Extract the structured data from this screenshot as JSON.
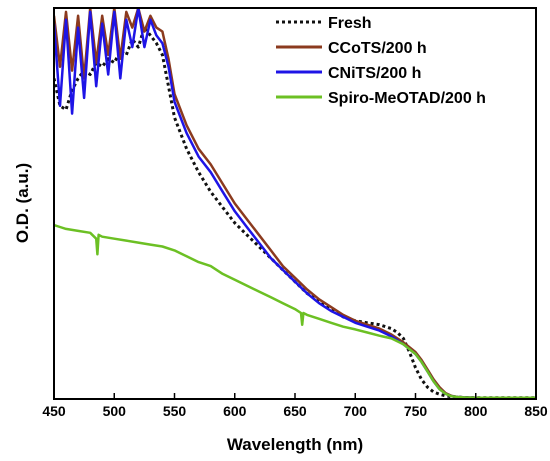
{
  "chart_data": {
    "type": "line",
    "xlabel": "Wavelength (nm)",
    "ylabel": "O.D. (a.u.)",
    "xlim": [
      450,
      850
    ],
    "ylim": [
      0,
      1
    ],
    "x_ticks": [
      450,
      500,
      550,
      600,
      650,
      700,
      750,
      800,
      850
    ],
    "x_tick_labels": [
      "450",
      "500",
      "550",
      "600",
      "650",
      "700",
      "750",
      "800",
      "850"
    ],
    "y_ticks_shown": false,
    "grid": false,
    "legend_position": "top-right",
    "legend": [
      "Fresh",
      "CCoTS/200 h",
      "CNiTS/200 h",
      "Spiro-MeOTAD/200 h"
    ],
    "series": [
      {
        "name": "Fresh",
        "color": "#111111",
        "dash": "dotted",
        "x": [
          450,
          455,
          460,
          465,
          470,
          475,
          480,
          485,
          490,
          495,
          500,
          505,
          510,
          515,
          520,
          525,
          530,
          535,
          540,
          545,
          550,
          560,
          570,
          580,
          590,
          600,
          610,
          620,
          630,
          640,
          650,
          660,
          670,
          680,
          690,
          700,
          710,
          720,
          730,
          735,
          740,
          745,
          750,
          755,
          760,
          765,
          770,
          775,
          780,
          790,
          800,
          810,
          820,
          830,
          840,
          850
        ],
        "y": [
          0.82,
          0.75,
          0.74,
          0.79,
          0.82,
          0.84,
          0.83,
          0.86,
          0.85,
          0.87,
          0.86,
          0.89,
          0.88,
          0.92,
          0.9,
          0.95,
          0.93,
          0.91,
          0.88,
          0.8,
          0.72,
          0.64,
          0.58,
          0.53,
          0.49,
          0.45,
          0.42,
          0.39,
          0.36,
          0.33,
          0.3,
          0.27,
          0.25,
          0.23,
          0.21,
          0.2,
          0.195,
          0.19,
          0.18,
          0.17,
          0.155,
          0.12,
          0.08,
          0.05,
          0.03,
          0.018,
          0.012,
          0.008,
          0.006,
          0.004,
          0.003,
          0.003,
          0.003,
          0.003,
          0.003,
          0.003
        ]
      },
      {
        "name": "CCoTS/200 h",
        "color": "#8B3A1E",
        "dash": "solid",
        "x": [
          450,
          455,
          460,
          465,
          470,
          475,
          480,
          485,
          490,
          495,
          500,
          505,
          510,
          515,
          520,
          525,
          530,
          535,
          540,
          545,
          550,
          560,
          570,
          580,
          590,
          600,
          610,
          620,
          630,
          640,
          650,
          660,
          670,
          680,
          690,
          700,
          710,
          720,
          730,
          740,
          750,
          755,
          760,
          765,
          770,
          775,
          780,
          785,
          790,
          800,
          810,
          820,
          830,
          840,
          850
        ],
        "y": [
          0.98,
          0.85,
          0.99,
          0.84,
          0.98,
          0.82,
          1.0,
          0.86,
          0.98,
          0.88,
          1.0,
          0.87,
          0.99,
          0.95,
          1.0,
          0.94,
          0.98,
          0.95,
          0.94,
          0.87,
          0.78,
          0.7,
          0.64,
          0.6,
          0.55,
          0.5,
          0.46,
          0.42,
          0.38,
          0.34,
          0.31,
          0.28,
          0.255,
          0.235,
          0.215,
          0.2,
          0.19,
          0.18,
          0.165,
          0.145,
          0.12,
          0.1,
          0.075,
          0.05,
          0.03,
          0.015,
          0.008,
          0.005,
          0.004,
          0.003,
          0.003,
          0.003,
          0.003,
          0.003,
          0.003
        ]
      },
      {
        "name": "CNiTS/200 h",
        "color": "#1E14E6",
        "dash": "solid",
        "x": [
          450,
          455,
          460,
          465,
          470,
          475,
          480,
          485,
          490,
          495,
          500,
          505,
          510,
          515,
          520,
          525,
          530,
          535,
          540,
          545,
          550,
          560,
          570,
          580,
          590,
          600,
          610,
          620,
          630,
          640,
          650,
          660,
          670,
          680,
          690,
          700,
          710,
          720,
          730,
          740,
          750,
          755,
          760,
          765,
          770,
          775,
          780,
          785,
          790,
          800,
          810,
          820,
          830,
          840,
          850
        ],
        "y": [
          0.96,
          0.75,
          0.97,
          0.73,
          0.95,
          0.77,
          0.99,
          0.8,
          0.96,
          0.83,
          0.99,
          0.82,
          0.97,
          0.9,
          1.0,
          0.9,
          0.97,
          0.93,
          0.91,
          0.85,
          0.76,
          0.68,
          0.62,
          0.58,
          0.53,
          0.48,
          0.44,
          0.4,
          0.36,
          0.33,
          0.3,
          0.27,
          0.245,
          0.225,
          0.21,
          0.195,
          0.185,
          0.175,
          0.16,
          0.14,
          0.115,
          0.095,
          0.07,
          0.045,
          0.025,
          0.013,
          0.007,
          0.005,
          0.004,
          0.003,
          0.003,
          0.003,
          0.003,
          0.003,
          0.003
        ]
      },
      {
        "name": "Spiro-MeOTAD/200 h",
        "color": "#6CC024",
        "dash": "solid",
        "x": [
          450,
          455,
          460,
          470,
          480,
          485,
          486,
          487,
          490,
          500,
          510,
          520,
          530,
          540,
          550,
          560,
          570,
          580,
          590,
          600,
          610,
          620,
          630,
          640,
          650,
          655,
          656,
          657,
          660,
          670,
          680,
          690,
          700,
          710,
          720,
          730,
          740,
          750,
          755,
          760,
          765,
          770,
          775,
          780,
          785,
          790,
          800,
          810,
          820,
          830,
          840,
          850
        ],
        "y": [
          0.445,
          0.44,
          0.435,
          0.43,
          0.425,
          0.41,
          0.37,
          0.42,
          0.415,
          0.41,
          0.405,
          0.4,
          0.395,
          0.39,
          0.38,
          0.365,
          0.35,
          0.34,
          0.32,
          0.305,
          0.29,
          0.275,
          0.26,
          0.245,
          0.23,
          0.22,
          0.19,
          0.22,
          0.215,
          0.205,
          0.195,
          0.185,
          0.178,
          0.17,
          0.162,
          0.155,
          0.14,
          0.115,
          0.095,
          0.07,
          0.045,
          0.025,
          0.013,
          0.007,
          0.005,
          0.004,
          0.003,
          0.003,
          0.003,
          0.003,
          0.003,
          0.003
        ]
      }
    ]
  }
}
